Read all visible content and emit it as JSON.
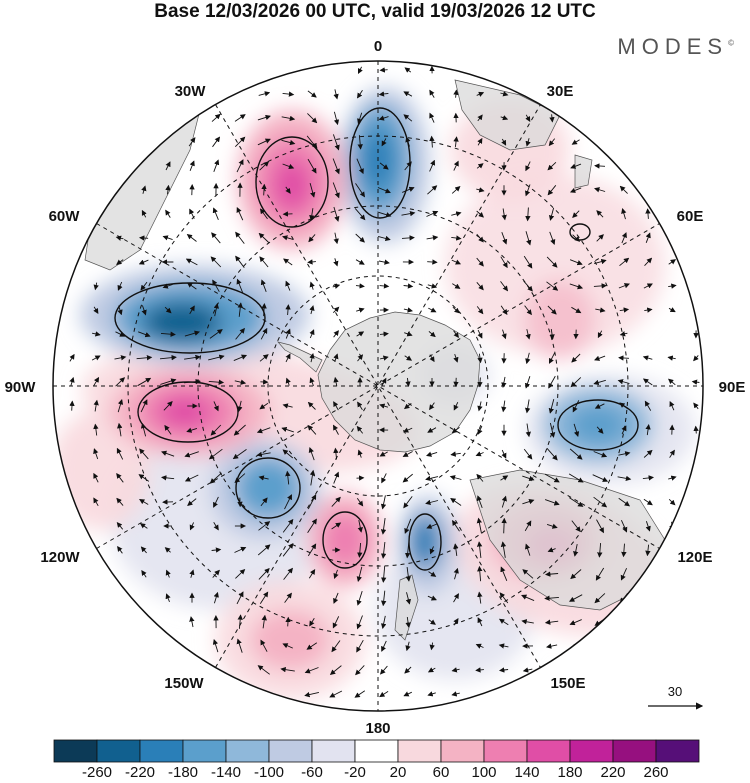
{
  "title": "Base 12/03/2026 00 UTC, valid 19/03/2026 12 UTC",
  "brand": "MODES",
  "brand_mark": "©",
  "longitude_labels": {
    "lon_0": "0",
    "lon_30e": "30E",
    "lon_60e": "60E",
    "lon_90e": "90E",
    "lon_120e": "120E",
    "lon_150e": "150E",
    "lon_180": "180",
    "lon_150w": "150W",
    "lon_120w": "120W",
    "lon_90w": "90W",
    "lon_60w": "60W",
    "lon_30w": "30W"
  },
  "reference_vector": {
    "label": "30"
  },
  "colorbar": {
    "labels": [
      "-260",
      "-220",
      "-180",
      "-140",
      "-100",
      "-60",
      "-20",
      "20",
      "60",
      "100",
      "140",
      "180",
      "220",
      "260"
    ],
    "colors": [
      "#0c3a57",
      "#11608f",
      "#2a7fb8",
      "#5b9fcc",
      "#8fb8da",
      "#bfcbe3",
      "#e2e3f0",
      "#ffffff",
      "#f8d9de",
      "#f4b3c4",
      "#ee7fb1",
      "#e04ea6",
      "#c1229a",
      "#96107f",
      "#560f78"
    ]
  },
  "anomaly_centers": [
    {
      "name": "anomaly-neg-0",
      "value": -180
    },
    {
      "name": "anomaly-pos-20w",
      "value": 180
    },
    {
      "name": "anomaly-neg-60w",
      "value": -220
    },
    {
      "name": "anomaly-pos-95w",
      "value": 180
    },
    {
      "name": "anomaly-neg-120w",
      "value": -140
    },
    {
      "name": "anomaly-pos-160w",
      "value": 140
    },
    {
      "name": "anomaly-neg-170e",
      "value": -180
    },
    {
      "name": "anomaly-pos-130e",
      "value": 140
    },
    {
      "name": "anomaly-neg-95e",
      "value": -100
    },
    {
      "name": "anomaly-pos-30e",
      "value": 60
    },
    {
      "name": "anomaly-pos-165w",
      "value": 100
    }
  ]
}
